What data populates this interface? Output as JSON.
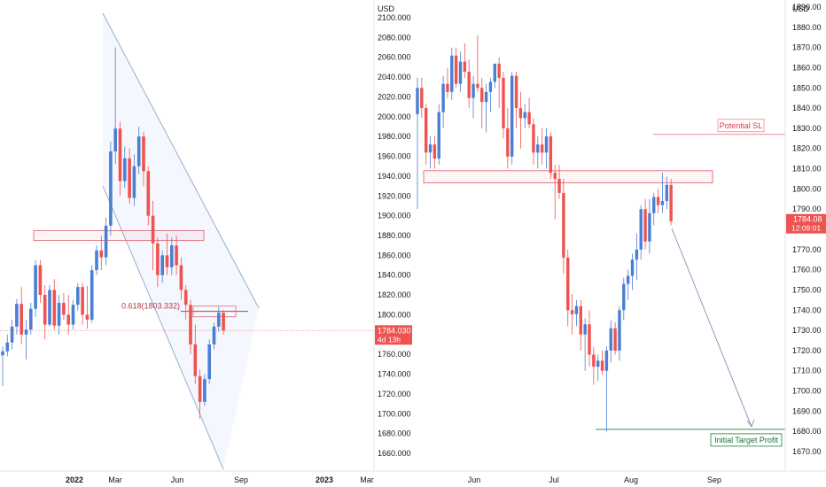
{
  "colors": {
    "bull": "#4a7fd4",
    "bear": "#ef5350",
    "channel": "#8fa6c8",
    "zone": "#e06a7a",
    "price_line": "#f2a1a8",
    "badge_bg": "#ef5350",
    "sl_line": "#f08b96",
    "target_line": "#1b7a3a",
    "grid": "#f0f3fa",
    "text": "#131722"
  },
  "chart_data": [
    {
      "type": "candlestick",
      "panel": "left",
      "unit_label": "USD",
      "x_ticks": [
        "2022",
        "Mar",
        "Jun",
        "Sep",
        "2023",
        "Mar"
      ],
      "y_ticks": [
        2100,
        2080,
        2060,
        2040,
        2020,
        2000,
        1980,
        1960,
        1940,
        1920,
        1900,
        1880,
        1860,
        1840,
        1820,
        1800,
        1780,
        1760,
        1740,
        1720,
        1700,
        1680,
        1660
      ],
      "ylim": [
        1645,
        2105
      ],
      "fib_label": "0.618(1803.332)",
      "fib_level": 1803.332,
      "resistance_zone": [
        1875,
        1885
      ],
      "price_badge": {
        "value": "1784.030",
        "sub": "4d 13h",
        "price": 1784.03
      },
      "candles": [
        {
          "o": 1759,
          "h": 1768,
          "l": 1728,
          "c": 1763
        },
        {
          "o": 1763,
          "h": 1780,
          "l": 1758,
          "c": 1772
        },
        {
          "o": 1772,
          "h": 1795,
          "l": 1765,
          "c": 1788
        },
        {
          "o": 1788,
          "h": 1816,
          "l": 1780,
          "c": 1811
        },
        {
          "o": 1811,
          "h": 1828,
          "l": 1770,
          "c": 1780
        },
        {
          "o": 1780,
          "h": 1795,
          "l": 1755,
          "c": 1785
        },
        {
          "o": 1785,
          "h": 1812,
          "l": 1780,
          "c": 1806
        },
        {
          "o": 1806,
          "h": 1855,
          "l": 1798,
          "c": 1850
        },
        {
          "o": 1850,
          "h": 1855,
          "l": 1812,
          "c": 1820
        },
        {
          "o": 1820,
          "h": 1830,
          "l": 1775,
          "c": 1790
        },
        {
          "o": 1790,
          "h": 1830,
          "l": 1788,
          "c": 1825
        },
        {
          "o": 1825,
          "h": 1836,
          "l": 1785,
          "c": 1789
        },
        {
          "o": 1789,
          "h": 1820,
          "l": 1780,
          "c": 1812
        },
        {
          "o": 1812,
          "h": 1822,
          "l": 1795,
          "c": 1800
        },
        {
          "o": 1800,
          "h": 1820,
          "l": 1780,
          "c": 1790
        },
        {
          "o": 1790,
          "h": 1815,
          "l": 1785,
          "c": 1810
        },
        {
          "o": 1810,
          "h": 1832,
          "l": 1804,
          "c": 1828
        },
        {
          "o": 1828,
          "h": 1832,
          "l": 1790,
          "c": 1800
        },
        {
          "o": 1800,
          "h": 1829,
          "l": 1786,
          "c": 1795
        },
        {
          "o": 1795,
          "h": 1850,
          "l": 1792,
          "c": 1845
        },
        {
          "o": 1845,
          "h": 1870,
          "l": 1840,
          "c": 1865
        },
        {
          "o": 1865,
          "h": 1880,
          "l": 1845,
          "c": 1858
        },
        {
          "o": 1858,
          "h": 1898,
          "l": 1850,
          "c": 1890
        },
        {
          "o": 1890,
          "h": 1975,
          "l": 1880,
          "c": 1965
        },
        {
          "o": 1965,
          "h": 2070,
          "l": 1952,
          "c": 1988
        },
        {
          "o": 1988,
          "h": 1995,
          "l": 1920,
          "c": 1935
        },
        {
          "o": 1935,
          "h": 1970,
          "l": 1928,
          "c": 1958
        },
        {
          "o": 1958,
          "h": 1968,
          "l": 1912,
          "c": 1918
        },
        {
          "o": 1918,
          "h": 1962,
          "l": 1910,
          "c": 1950
        },
        {
          "o": 1950,
          "h": 1990,
          "l": 1942,
          "c": 1980
        },
        {
          "o": 1980,
          "h": 1985,
          "l": 1930,
          "c": 1945
        },
        {
          "o": 1945,
          "h": 1950,
          "l": 1890,
          "c": 1900
        },
        {
          "o": 1900,
          "h": 1915,
          "l": 1845,
          "c": 1872
        },
        {
          "o": 1872,
          "h": 1878,
          "l": 1828,
          "c": 1840
        },
        {
          "o": 1840,
          "h": 1865,
          "l": 1832,
          "c": 1860
        },
        {
          "o": 1860,
          "h": 1882,
          "l": 1840,
          "c": 1848
        },
        {
          "o": 1848,
          "h": 1878,
          "l": 1840,
          "c": 1870
        },
        {
          "o": 1870,
          "h": 1880,
          "l": 1840,
          "c": 1850
        },
        {
          "o": 1850,
          "h": 1858,
          "l": 1815,
          "c": 1825
        },
        {
          "o": 1825,
          "h": 1830,
          "l": 1795,
          "c": 1810
        },
        {
          "o": 1810,
          "h": 1815,
          "l": 1760,
          "c": 1770
        },
        {
          "o": 1770,
          "h": 1790,
          "l": 1730,
          "c": 1738
        },
        {
          "o": 1738,
          "h": 1745,
          "l": 1695,
          "c": 1712
        },
        {
          "o": 1712,
          "h": 1740,
          "l": 1708,
          "c": 1735
        },
        {
          "o": 1735,
          "h": 1775,
          "l": 1730,
          "c": 1770
        },
        {
          "o": 1770,
          "h": 1792,
          "l": 1765,
          "c": 1788
        },
        {
          "o": 1788,
          "h": 1808,
          "l": 1783,
          "c": 1802
        },
        {
          "o": 1802,
          "h": 1805,
          "l": 1780,
          "c": 1784
        }
      ]
    },
    {
      "type": "candlestick",
      "panel": "right",
      "unit_label": "USD",
      "x_ticks": [
        "Jun",
        "Jul",
        "Aug",
        "Sep"
      ],
      "y_ticks": [
        1890,
        1880,
        1870,
        1860,
        1850,
        1840,
        1830,
        1820,
        1810,
        1800,
        1790,
        1780,
        1770,
        1760,
        1750,
        1740,
        1730,
        1720,
        1710,
        1700,
        1690,
        1680,
        1670
      ],
      "ylim": [
        1663,
        1896
      ],
      "stop_loss": {
        "label": "Potential SL",
        "price": 1827
      },
      "target": {
        "label": "Initial Target Profit",
        "price": 1681
      },
      "resistance_zone": [
        1803,
        1809
      ],
      "price_badge": {
        "value": "1784.08",
        "sub": "12:09:01",
        "price": 1784.08
      },
      "candles": [
        {
          "o": 1837,
          "h": 1855,
          "l": 1790,
          "c": 1850
        },
        {
          "o": 1850,
          "h": 1855,
          "l": 1835,
          "c": 1840
        },
        {
          "o": 1840,
          "h": 1842,
          "l": 1812,
          "c": 1818
        },
        {
          "o": 1818,
          "h": 1826,
          "l": 1810,
          "c": 1822
        },
        {
          "o": 1822,
          "h": 1826,
          "l": 1810,
          "c": 1815
        },
        {
          "o": 1815,
          "h": 1842,
          "l": 1812,
          "c": 1838
        },
        {
          "o": 1838,
          "h": 1856,
          "l": 1830,
          "c": 1852
        },
        {
          "o": 1852,
          "h": 1860,
          "l": 1845,
          "c": 1848
        },
        {
          "o": 1848,
          "h": 1870,
          "l": 1844,
          "c": 1866
        },
        {
          "o": 1866,
          "h": 1870,
          "l": 1850,
          "c": 1852
        },
        {
          "o": 1852,
          "h": 1868,
          "l": 1848,
          "c": 1863
        },
        {
          "o": 1863,
          "h": 1872,
          "l": 1855,
          "c": 1858
        },
        {
          "o": 1858,
          "h": 1864,
          "l": 1840,
          "c": 1845
        },
        {
          "o": 1845,
          "h": 1856,
          "l": 1835,
          "c": 1852
        },
        {
          "o": 1852,
          "h": 1876,
          "l": 1848,
          "c": 1850
        },
        {
          "o": 1850,
          "h": 1855,
          "l": 1830,
          "c": 1843
        },
        {
          "o": 1843,
          "h": 1852,
          "l": 1828,
          "c": 1848
        },
        {
          "o": 1848,
          "h": 1855,
          "l": 1838,
          "c": 1853
        },
        {
          "o": 1853,
          "h": 1860,
          "l": 1850,
          "c": 1862
        },
        {
          "o": 1862,
          "h": 1865,
          "l": 1840,
          "c": 1855
        },
        {
          "o": 1855,
          "h": 1858,
          "l": 1825,
          "c": 1830
        },
        {
          "o": 1830,
          "h": 1840,
          "l": 1810,
          "c": 1816
        },
        {
          "o": 1816,
          "h": 1858,
          "l": 1812,
          "c": 1856
        },
        {
          "o": 1856,
          "h": 1858,
          "l": 1830,
          "c": 1840
        },
        {
          "o": 1840,
          "h": 1848,
          "l": 1820,
          "c": 1835
        },
        {
          "o": 1835,
          "h": 1842,
          "l": 1830,
          "c": 1838
        },
        {
          "o": 1838,
          "h": 1845,
          "l": 1830,
          "c": 1832
        },
        {
          "o": 1832,
          "h": 1835,
          "l": 1812,
          "c": 1818
        },
        {
          "o": 1818,
          "h": 1826,
          "l": 1810,
          "c": 1822
        },
        {
          "o": 1822,
          "h": 1830,
          "l": 1812,
          "c": 1818
        },
        {
          "o": 1818,
          "h": 1830,
          "l": 1810,
          "c": 1826
        },
        {
          "o": 1826,
          "h": 1828,
          "l": 1805,
          "c": 1808
        },
        {
          "o": 1808,
          "h": 1812,
          "l": 1785,
          "c": 1805
        },
        {
          "o": 1805,
          "h": 1812,
          "l": 1795,
          "c": 1798
        },
        {
          "o": 1798,
          "h": 1805,
          "l": 1758,
          "c": 1766
        },
        {
          "o": 1766,
          "h": 1770,
          "l": 1732,
          "c": 1740
        },
        {
          "o": 1740,
          "h": 1748,
          "l": 1728,
          "c": 1738
        },
        {
          "o": 1738,
          "h": 1745,
          "l": 1732,
          "c": 1742
        },
        {
          "o": 1742,
          "h": 1745,
          "l": 1720,
          "c": 1728
        },
        {
          "o": 1728,
          "h": 1736,
          "l": 1710,
          "c": 1733
        },
        {
          "o": 1733,
          "h": 1740,
          "l": 1712,
          "c": 1718
        },
        {
          "o": 1718,
          "h": 1722,
          "l": 1703,
          "c": 1712
        },
        {
          "o": 1712,
          "h": 1718,
          "l": 1705,
          "c": 1715
        },
        {
          "o": 1715,
          "h": 1720,
          "l": 1708,
          "c": 1710
        },
        {
          "o": 1710,
          "h": 1722,
          "l": 1680,
          "c": 1720
        },
        {
          "o": 1720,
          "h": 1735,
          "l": 1714,
          "c": 1731
        },
        {
          "o": 1731,
          "h": 1734,
          "l": 1718,
          "c": 1720
        },
        {
          "o": 1720,
          "h": 1742,
          "l": 1715,
          "c": 1740
        },
        {
          "o": 1740,
          "h": 1756,
          "l": 1735,
          "c": 1753
        },
        {
          "o": 1753,
          "h": 1760,
          "l": 1745,
          "c": 1757
        },
        {
          "o": 1757,
          "h": 1768,
          "l": 1750,
          "c": 1765
        },
        {
          "o": 1765,
          "h": 1778,
          "l": 1755,
          "c": 1770
        },
        {
          "o": 1770,
          "h": 1792,
          "l": 1765,
          "c": 1790
        },
        {
          "o": 1790,
          "h": 1795,
          "l": 1770,
          "c": 1774
        },
        {
          "o": 1774,
          "h": 1795,
          "l": 1768,
          "c": 1788
        },
        {
          "o": 1788,
          "h": 1798,
          "l": 1782,
          "c": 1796
        },
        {
          "o": 1796,
          "h": 1800,
          "l": 1788,
          "c": 1792
        },
        {
          "o": 1792,
          "h": 1808,
          "l": 1788,
          "c": 1794
        },
        {
          "o": 1794,
          "h": 1806,
          "l": 1790,
          "c": 1802
        },
        {
          "o": 1802,
          "h": 1805,
          "l": 1782,
          "c": 1784
        }
      ]
    }
  ]
}
